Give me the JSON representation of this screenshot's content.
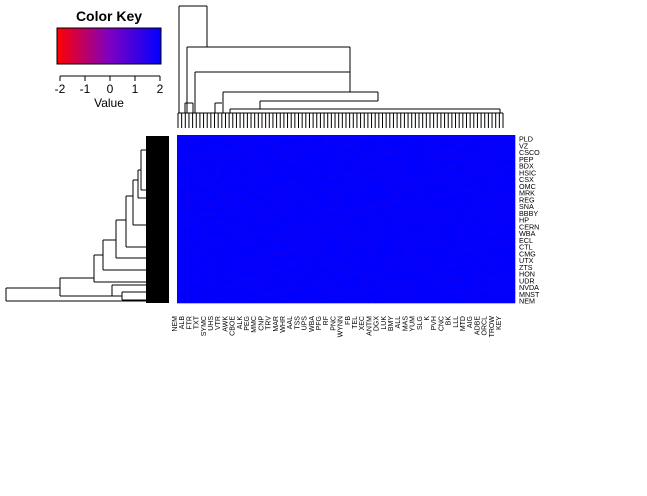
{
  "chart_data": {
    "type": "heatmap",
    "title": "",
    "xlabel": "",
    "ylabel": "",
    "color_key": {
      "title": "Color Key",
      "xlabel": "Value",
      "ticks": [
        "-2",
        "-1",
        "0",
        "1",
        "2"
      ],
      "range": [
        -2,
        2
      ],
      "colors": [
        "#ff0000",
        "#0000ff"
      ]
    },
    "row_labels": [
      "PLD",
      "VZ",
      "CSCO",
      "PEP",
      "BDX",
      "HSIC",
      "CSX",
      "OMC",
      "MRK",
      "REG",
      "SNA",
      "BBBY",
      "HP",
      "CERN",
      "WBA",
      "ECL",
      "CTL",
      "CMG",
      "UTX",
      "ZTS",
      "HON",
      "UDR",
      "NVDA",
      "MNST",
      "NEM"
    ],
    "col_labels": [
      "NEM",
      "ALB",
      "FTR",
      "TXT",
      "SYMC",
      "UHS",
      "VTR",
      "AWK",
      "CBOE",
      "ALK",
      "PEG",
      "MMC",
      "CNP",
      "TRV",
      "MAR",
      "WHR",
      "AAL",
      "TSS",
      "UPS",
      "WBA",
      "PFG",
      "RF",
      "PNC",
      "WYNN",
      "FB",
      "TEL",
      "XEC",
      "ANTM",
      "DGX",
      "LUK",
      "BMY",
      "ALL",
      "MAS",
      "YUM",
      "SLG",
      "K",
      "PVH",
      "CNC",
      "BK",
      "LLL",
      "MTD",
      "AIG",
      "ADBE",
      "ORCL",
      "TROW",
      "KEY"
    ],
    "cell_value_range": [
      1.6,
      2.0
    ],
    "diagonal_value": 1.0,
    "dendrograms": [
      "rows",
      "columns"
    ]
  }
}
